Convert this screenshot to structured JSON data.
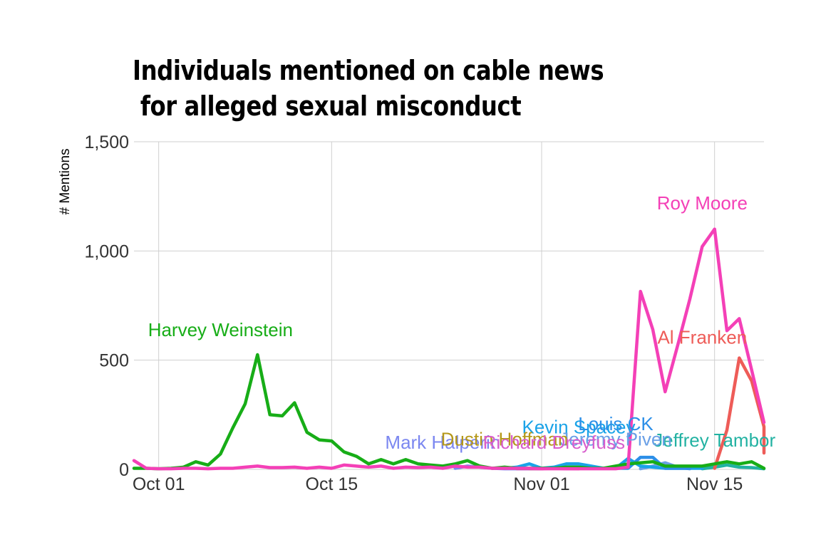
{
  "chart_data": {
    "type": "line",
    "title": "Individuals mentioned on cable news\n for alleged sexual misconduct",
    "xlabel": "",
    "ylabel": "# Mentions",
    "ylim": [
      0,
      1500
    ],
    "xlim": [
      "2017-09-29",
      "2017-11-19"
    ],
    "yticks": [
      {
        "value": 0,
        "label": "0"
      },
      {
        "value": 500,
        "label": "500"
      },
      {
        "value": 1000,
        "label": "1,000"
      },
      {
        "value": 1500,
        "label": "1,500"
      }
    ],
    "xticks": [
      {
        "date": "2017-10-01",
        "label": "Oct 01"
      },
      {
        "date": "2017-10-15",
        "label": "Oct 15"
      },
      {
        "date": "2017-11-01",
        "label": "Nov 01"
      },
      {
        "date": "2017-11-15",
        "label": "Nov 15"
      }
    ],
    "grid": true,
    "legend": "none (direct labels)",
    "series": [
      {
        "name": "Harvey Weinstein",
        "color": "#17ad17",
        "label_at": [
          "2017-10-06",
          610
        ],
        "points": [
          [
            "2017-09-29",
            5
          ],
          [
            "2017-09-30",
            5
          ],
          [
            "2017-10-01",
            3
          ],
          [
            "2017-10-02",
            5
          ],
          [
            "2017-10-03",
            10
          ],
          [
            "2017-10-04",
            35
          ],
          [
            "2017-10-05",
            20
          ],
          [
            "2017-10-06",
            70
          ],
          [
            "2017-10-07",
            190
          ],
          [
            "2017-10-08",
            300
          ],
          [
            "2017-10-09",
            525
          ],
          [
            "2017-10-10",
            250
          ],
          [
            "2017-10-11",
            245
          ],
          [
            "2017-10-12",
            305
          ],
          [
            "2017-10-13",
            170
          ],
          [
            "2017-10-14",
            135
          ],
          [
            "2017-10-15",
            130
          ],
          [
            "2017-10-16",
            80
          ],
          [
            "2017-10-17",
            60
          ],
          [
            "2017-10-18",
            25
          ],
          [
            "2017-10-19",
            45
          ],
          [
            "2017-10-20",
            25
          ],
          [
            "2017-10-21",
            45
          ],
          [
            "2017-10-22",
            25
          ],
          [
            "2017-10-23",
            20
          ],
          [
            "2017-10-24",
            15
          ],
          [
            "2017-10-25",
            25
          ],
          [
            "2017-10-26",
            40
          ],
          [
            "2017-10-27",
            15
          ],
          [
            "2017-10-28",
            5
          ],
          [
            "2017-10-29",
            10
          ],
          [
            "2017-10-30",
            5
          ],
          [
            "2017-10-31",
            5
          ],
          [
            "2017-11-01",
            5
          ],
          [
            "2017-11-02",
            5
          ],
          [
            "2017-11-03",
            10
          ],
          [
            "2017-11-04",
            10
          ],
          [
            "2017-11-05",
            5
          ],
          [
            "2017-11-06",
            5
          ],
          [
            "2017-11-07",
            15
          ],
          [
            "2017-11-08",
            25
          ],
          [
            "2017-11-09",
            30
          ],
          [
            "2017-11-10",
            35
          ],
          [
            "2017-11-11",
            15
          ],
          [
            "2017-11-12",
            15
          ],
          [
            "2017-11-13",
            15
          ],
          [
            "2017-11-14",
            15
          ],
          [
            "2017-11-15",
            25
          ],
          [
            "2017-11-16",
            35
          ],
          [
            "2017-11-17",
            25
          ],
          [
            "2017-11-18",
            35
          ],
          [
            "2017-11-19",
            5
          ]
        ]
      },
      {
        "name": "Roy Moore",
        "color": "#f440b7",
        "label_at": [
          "2017-11-14",
          1190
        ],
        "points": [
          [
            "2017-09-29",
            40
          ],
          [
            "2017-09-30",
            5
          ],
          [
            "2017-10-01",
            3
          ],
          [
            "2017-10-02",
            3
          ],
          [
            "2017-10-03",
            5
          ],
          [
            "2017-10-04",
            5
          ],
          [
            "2017-10-05",
            3
          ],
          [
            "2017-10-06",
            5
          ],
          [
            "2017-10-07",
            5
          ],
          [
            "2017-10-08",
            10
          ],
          [
            "2017-10-09",
            15
          ],
          [
            "2017-10-10",
            8
          ],
          [
            "2017-10-11",
            8
          ],
          [
            "2017-10-12",
            10
          ],
          [
            "2017-10-13",
            5
          ],
          [
            "2017-10-14",
            10
          ],
          [
            "2017-10-15",
            5
          ],
          [
            "2017-10-16",
            20
          ],
          [
            "2017-10-17",
            15
          ],
          [
            "2017-10-18",
            10
          ],
          [
            "2017-10-19",
            15
          ],
          [
            "2017-10-20",
            5
          ],
          [
            "2017-10-21",
            10
          ],
          [
            "2017-10-22",
            8
          ],
          [
            "2017-10-23",
            10
          ],
          [
            "2017-10-24",
            5
          ],
          [
            "2017-10-25",
            15
          ],
          [
            "2017-10-26",
            10
          ],
          [
            "2017-10-27",
            10
          ],
          [
            "2017-10-28",
            5
          ],
          [
            "2017-10-29",
            5
          ],
          [
            "2017-10-30",
            5
          ],
          [
            "2017-10-31",
            5
          ],
          [
            "2017-11-01",
            3
          ],
          [
            "2017-11-02",
            3
          ],
          [
            "2017-11-03",
            3
          ],
          [
            "2017-11-04",
            3
          ],
          [
            "2017-11-05",
            3
          ],
          [
            "2017-11-06",
            3
          ],
          [
            "2017-11-07",
            3
          ],
          [
            "2017-11-08",
            10
          ],
          [
            "2017-11-09",
            815
          ],
          [
            "2017-11-10",
            640
          ],
          [
            "2017-11-11",
            355
          ],
          [
            "2017-11-12",
            565
          ],
          [
            "2017-11-13",
            780
          ],
          [
            "2017-11-14",
            1020
          ],
          [
            "2017-11-15",
            1100
          ],
          [
            "2017-11-16",
            635
          ],
          [
            "2017-11-17",
            690
          ],
          [
            "2017-11-18",
            455
          ],
          [
            "2017-11-19",
            215
          ]
        ]
      },
      {
        "name": "Al Franken",
        "color": "#ee5c58",
        "label_at": [
          "2017-11-14",
          575
        ],
        "points": [
          [
            "2017-11-15",
            5
          ],
          [
            "2017-11-16",
            180
          ],
          [
            "2017-11-17",
            510
          ],
          [
            "2017-11-18",
            405
          ],
          [
            "2017-11-19",
            195
          ],
          [
            "2017-11-19",
            75
          ]
        ]
      },
      {
        "name": "Kevin Spacey",
        "color": "#1aa3e8",
        "label_at": [
          "2017-11-04",
          165
        ],
        "points": [
          [
            "2017-10-29",
            5
          ],
          [
            "2017-10-30",
            10
          ],
          [
            "2017-10-31",
            25
          ],
          [
            "2017-11-01",
            5
          ],
          [
            "2017-11-02",
            10
          ],
          [
            "2017-11-03",
            25
          ],
          [
            "2017-11-04",
            25
          ],
          [
            "2017-11-05",
            15
          ],
          [
            "2017-11-06",
            5
          ],
          [
            "2017-11-07",
            5
          ],
          [
            "2017-11-08",
            50
          ],
          [
            "2017-11-09",
            15
          ],
          [
            "2017-11-10",
            10
          ],
          [
            "2017-11-11",
            5
          ],
          [
            "2017-11-12",
            5
          ],
          [
            "2017-11-13",
            5
          ],
          [
            "2017-11-14",
            5
          ]
        ]
      },
      {
        "name": "Louis CK",
        "color": "#2c8fe8",
        "label_at": [
          "2017-11-07",
          180
        ],
        "points": [
          [
            "2017-11-07",
            5
          ],
          [
            "2017-11-08",
            5
          ],
          [
            "2017-11-09",
            55
          ],
          [
            "2017-11-10",
            55
          ],
          [
            "2017-11-11",
            5
          ],
          [
            "2017-11-12",
            5
          ],
          [
            "2017-11-13",
            5
          ]
        ]
      },
      {
        "name": "Jeffrey Tambor",
        "color": "#22b2a2",
        "label_at": [
          "2017-11-15",
          105
        ],
        "points": [
          [
            "2017-11-14",
            3
          ],
          [
            "2017-11-15",
            10
          ],
          [
            "2017-11-16",
            20
          ],
          [
            "2017-11-17",
            10
          ],
          [
            "2017-11-18",
            8
          ],
          [
            "2017-11-19",
            3
          ]
        ]
      },
      {
        "name": "Jeremy Piven",
        "color": "#6aa0e6",
        "label_at": [
          "2017-11-07",
          110
        ],
        "points": [
          [
            "2017-11-09",
            3
          ],
          [
            "2017-11-10",
            15
          ],
          [
            "2017-11-11",
            30
          ],
          [
            "2017-11-12",
            10
          ],
          [
            "2017-11-13",
            3
          ]
        ]
      },
      {
        "name": "Mark Halperin",
        "color": "#7b87f0",
        "label_at": [
          "2017-10-24",
          95
        ],
        "points": [
          [
            "2017-10-25",
            5
          ],
          [
            "2017-10-26",
            15
          ],
          [
            "2017-10-27",
            10
          ],
          [
            "2017-10-28",
            5
          ],
          [
            "2017-10-29",
            3
          ],
          [
            "2017-10-30",
            3
          ],
          [
            "2017-10-31",
            3
          ],
          [
            "2017-11-01",
            3
          ]
        ]
      },
      {
        "name": "Dustin Hoffman",
        "color": "#b5981a",
        "label_at": [
          "2017-10-29",
          110
        ],
        "points": [
          [
            "2017-10-31",
            3
          ],
          [
            "2017-11-01",
            3
          ],
          [
            "2017-11-02",
            8
          ],
          [
            "2017-11-03",
            5
          ],
          [
            "2017-11-04",
            3
          ]
        ]
      },
      {
        "name": "Richard Dreyfuss",
        "color": "#d85ecd",
        "label_at": [
          "2017-11-02",
          95
        ],
        "points": [
          [
            "2017-10-30",
            3
          ],
          [
            "2017-10-31",
            3
          ],
          [
            "2017-11-01",
            3
          ],
          [
            "2017-11-02",
            5
          ],
          [
            "2017-11-03",
            3
          ],
          [
            "2017-11-04",
            3
          ]
        ]
      }
    ]
  }
}
